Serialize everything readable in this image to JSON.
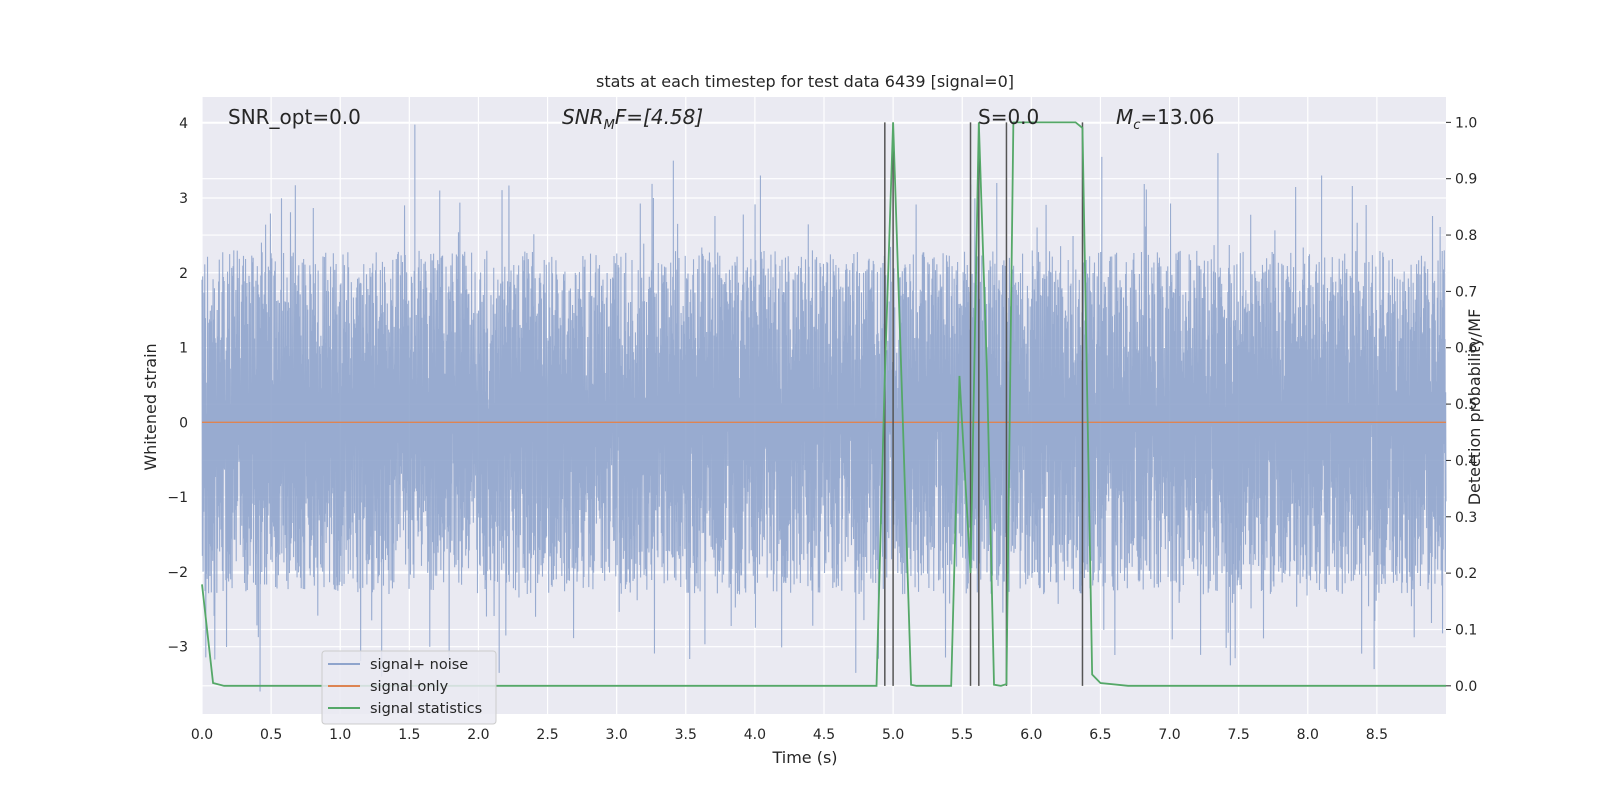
{
  "chart_data": {
    "type": "line",
    "title": "stats at each timestep for test data 6439 [signal=0]",
    "xlabel": "Time (s)",
    "ylabel_left": "Whitened strain",
    "ylabel_right": "Detection probability/MF",
    "xlim": [
      0,
      9
    ],
    "ylim_left": [
      -3.9,
      4.35
    ],
    "ylim_right": [
      -0.05,
      1.045
    ],
    "xticks": [
      "0.0",
      "0.5",
      "1.0",
      "1.5",
      "2.0",
      "2.5",
      "3.0",
      "3.5",
      "4.0",
      "4.5",
      "5.0",
      "5.5",
      "6.0",
      "6.5",
      "7.0",
      "7.5",
      "8.0",
      "8.5"
    ],
    "xtick_values": [
      0,
      0.5,
      1,
      1.5,
      2,
      2.5,
      3,
      3.5,
      4,
      4.5,
      5,
      5.5,
      6,
      6.5,
      7,
      7.5,
      8,
      8.5
    ],
    "yticks_left": [
      "−3",
      "−2",
      "−1",
      "0",
      "1",
      "2",
      "3",
      "4"
    ],
    "ytick_values_left": [
      -3,
      -2,
      -1,
      0,
      1,
      2,
      3,
      4
    ],
    "yticks_right": [
      "0.0",
      "0.1",
      "0.2",
      "0.3",
      "0.4",
      "0.5",
      "0.6",
      "0.7",
      "0.8",
      "0.9",
      "1.0"
    ],
    "ytick_values_right": [
      0,
      0.1,
      0.2,
      0.3,
      0.4,
      0.5,
      0.6,
      0.7,
      0.8,
      0.9,
      1.0
    ],
    "grid": true,
    "legend_placement": "lower-left",
    "annotations": {
      "snr_opt": "SNR_opt=0.0",
      "snr_mf_main": "SNR",
      "snr_mf_sub": "M",
      "snr_mf_rest": "F=[4.58]",
      "s_label": "S=0.0",
      "mc_main": "M",
      "mc_sub": "c",
      "mc_rest": "=13.06"
    },
    "series": [
      {
        "name": "signal+ noise",
        "axis": "left",
        "color": "#8fa4cc",
        "noise_envelope": {
          "typical_max": 2.3,
          "typical_min": -2.3,
          "peak_max": 4.0,
          "peak_min": -3.6
        },
        "peaks": [
          [
            1.54,
            3.98
          ],
          [
            1.72,
            3.1
          ],
          [
            3.41,
            3.5
          ],
          [
            4.04,
            3.3
          ],
          [
            5.56,
            3.35
          ],
          [
            5.75,
            3.2
          ],
          [
            6.51,
            3.55
          ],
          [
            7.35,
            3.6
          ],
          [
            8.1,
            3.3
          ],
          [
            0.42,
            -3.6
          ],
          [
            1.3,
            -3.4
          ],
          [
            2.15,
            -3.35
          ],
          [
            4.73,
            -3.35
          ],
          [
            6.37,
            -3.4
          ],
          [
            7.44,
            -3.25
          ],
          [
            8.48,
            -3.3
          ]
        ]
      },
      {
        "name": "signal only",
        "axis": "left",
        "color": "#dd8452",
        "x": [
          0,
          9
        ],
        "y": [
          0,
          0
        ]
      },
      {
        "name": "signal statistics",
        "axis": "right",
        "color": "#55a868",
        "x": [
          0.0,
          0.08,
          0.16,
          0.3,
          4.88,
          4.94,
          5.0,
          5.06,
          5.13,
          5.17,
          5.42,
          5.48,
          5.56,
          5.62,
          5.68,
          5.73,
          5.78,
          5.82,
          5.87,
          6.0,
          6.32,
          6.37,
          6.44,
          6.5,
          6.7,
          9.0
        ],
        "y": [
          0.18,
          0.005,
          0.0,
          0.0,
          0.0,
          0.55,
          1.0,
          0.55,
          0.002,
          0.0,
          0.0,
          0.55,
          0.2,
          1.0,
          0.55,
          0.002,
          0.0,
          0.003,
          1.0,
          1.0,
          1.0,
          0.99,
          0.02,
          0.005,
          0.0,
          0.0
        ]
      }
    ],
    "vertical_markers": {
      "color": "#555555",
      "x": [
        4.94,
        5.0,
        5.56,
        5.62,
        5.82,
        6.37
      ],
      "y_range_right": [
        0,
        1
      ]
    }
  }
}
